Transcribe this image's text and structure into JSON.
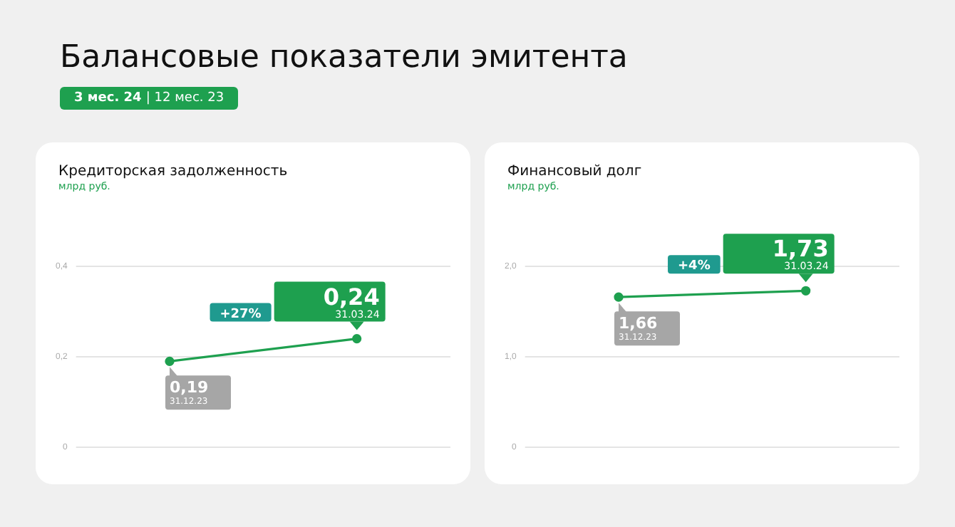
{
  "chart_data": [
    {
      "type": "line",
      "title": "Кредиторская задолженность",
      "subtitle": "млрд руб.",
      "categories": [
        "31.12.23",
        "31.03.24"
      ],
      "series": [
        {
          "color": "#1ea04f",
          "values": [
            0.19,
            0.24
          ],
          "value_labels": [
            "0,19",
            "0,24"
          ]
        }
      ],
      "ylim": [
        0,
        0.4
      ],
      "yticks": [
        0,
        {
          "value": 0.2,
          "label": "0,2"
        },
        {
          "value": 0.4,
          "label": "0,4"
        }
      ],
      "grid": "y",
      "legend": false,
      "tick_labels": "y",
      "marker": "circle",
      "line_style": "solid",
      "annotations": [
        "Балансовые показатели эмитента",
        "3 мес. 24 | 12 мес. 23",
        "+27%"
      ]
    },
    {
      "type": "line",
      "title": "Финансовый долг",
      "subtitle": "млрд руб.",
      "categories": [
        "31.12.23",
        "31.03.24"
      ],
      "series": [
        {
          "color": "#1ea04f",
          "values": [
            1.66,
            1.73
          ],
          "value_labels": [
            "1,66",
            "1,73"
          ]
        }
      ],
      "ylim": [
        0,
        2
      ],
      "yticks": [
        0,
        {
          "value": 1,
          "label": "1,0"
        },
        {
          "value": 2,
          "label": "2,0"
        }
      ],
      "grid": "y",
      "legend": false,
      "tick_labels": "y",
      "marker": "circle",
      "line_style": "solid",
      "annotations": [
        "+4%"
      ]
    }
  ]
}
